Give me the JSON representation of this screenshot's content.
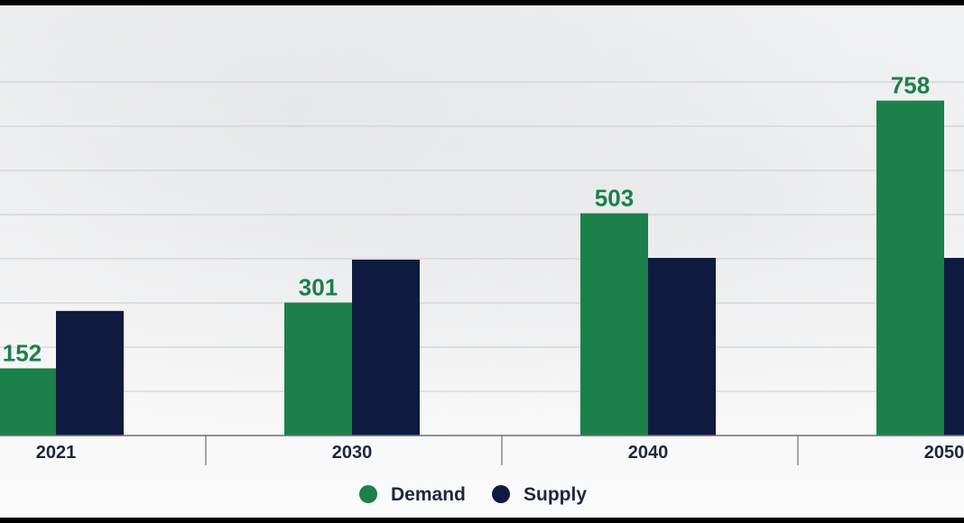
{
  "chart_data": {
    "type": "bar",
    "categories": [
      "2021",
      "2030",
      "2040",
      "2050"
    ],
    "series": [
      {
        "name": "Demand",
        "color": "#1b8049",
        "values": [
          152,
          301,
          503,
          758
        ],
        "labels": [
          "152",
          "301",
          "503",
          "758"
        ]
      },
      {
        "name": "Supply",
        "color": "#0f1a3f",
        "values": [
          282,
          398,
          402,
          402
        ]
      }
    ],
    "ylim": [
      0,
      800
    ],
    "gridlines": [
      100,
      200,
      300,
      400,
      500,
      600,
      700,
      800
    ],
    "legend": {
      "position": "bottom-center",
      "items": [
        "Demand",
        "Supply"
      ]
    },
    "title": "",
    "xlabel": "",
    "ylabel": ""
  }
}
